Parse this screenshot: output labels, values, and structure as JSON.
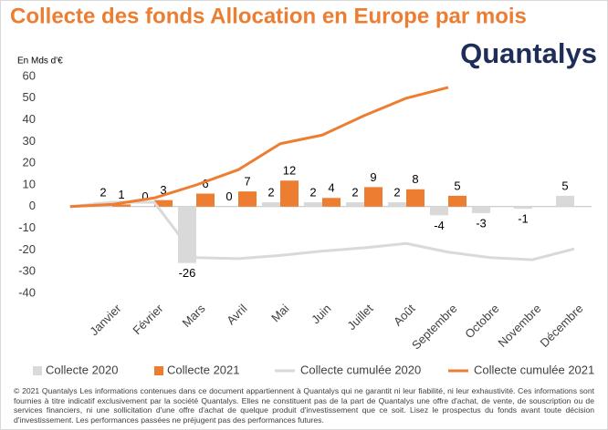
{
  "title": "Collecte des fonds Allocation en Europe par mois",
  "logo": "Quantalys",
  "chart_data": {
    "type": "bar",
    "y_label": "En Mds d'€",
    "categories": [
      null,
      "Janvier",
      "Février",
      "Mars",
      "Avril",
      "Mai",
      "Juin",
      "Juillet",
      "Août",
      "Septembre",
      "Octobre",
      "Novembre",
      "Décembre"
    ],
    "series": [
      {
        "name": "Collecte 2020",
        "type": "bar",
        "color": "#d9d9d9",
        "values": [
          null,
          2,
          0,
          -26,
          0,
          2,
          2,
          2,
          2,
          -4,
          -3,
          -1,
          5
        ]
      },
      {
        "name": "Collecte 2021",
        "type": "bar",
        "color": "#ed7d31",
        "values": [
          null,
          1,
          3,
          6,
          7,
          12,
          4,
          9,
          8,
          5,
          null,
          null,
          null
        ]
      },
      {
        "name": "Collecte cumulée 2020",
        "type": "line",
        "color": "#d9d9d9",
        "values": [
          0,
          2,
          2,
          -23.5,
          -24,
          -22.5,
          -20.5,
          -19,
          -17,
          -21,
          -23.5,
          -24.5,
          -19.5
        ]
      },
      {
        "name": "Collecte cumulée 2021",
        "type": "line",
        "color": "#ed7d31",
        "values": [
          0,
          1,
          4,
          10,
          17,
          29,
          33,
          42,
          50,
          55,
          null,
          null,
          null
        ]
      }
    ],
    "ylim": [
      -40,
      60
    ],
    "yticks": [
      -40,
      -30,
      -20,
      -10,
      0,
      10,
      20,
      30,
      40,
      50,
      60
    ],
    "grid": false,
    "data_labels": [
      "Collecte 2020",
      "Collecte 2021"
    ]
  },
  "footer": "© 2021 Quantalys Les informations contenues dans ce document appartiennent à Quantalys qui ne garantit ni leur fiabilité, ni leur exhaustivité. Ces informations sont fournies à titre indicatif exclusivement par la société Quantalys. Elles ne constituent pas de la part de Quantalys une offre d'achat, de vente, de souscription ou de services financiers, ni une sollicitation d'une offre d'achat de quelque produit d'investissement que ce soit. Lisez le prospectus du fonds avant toute décision d'investissement. Les performances passées ne préjugent pas des performances futures."
}
